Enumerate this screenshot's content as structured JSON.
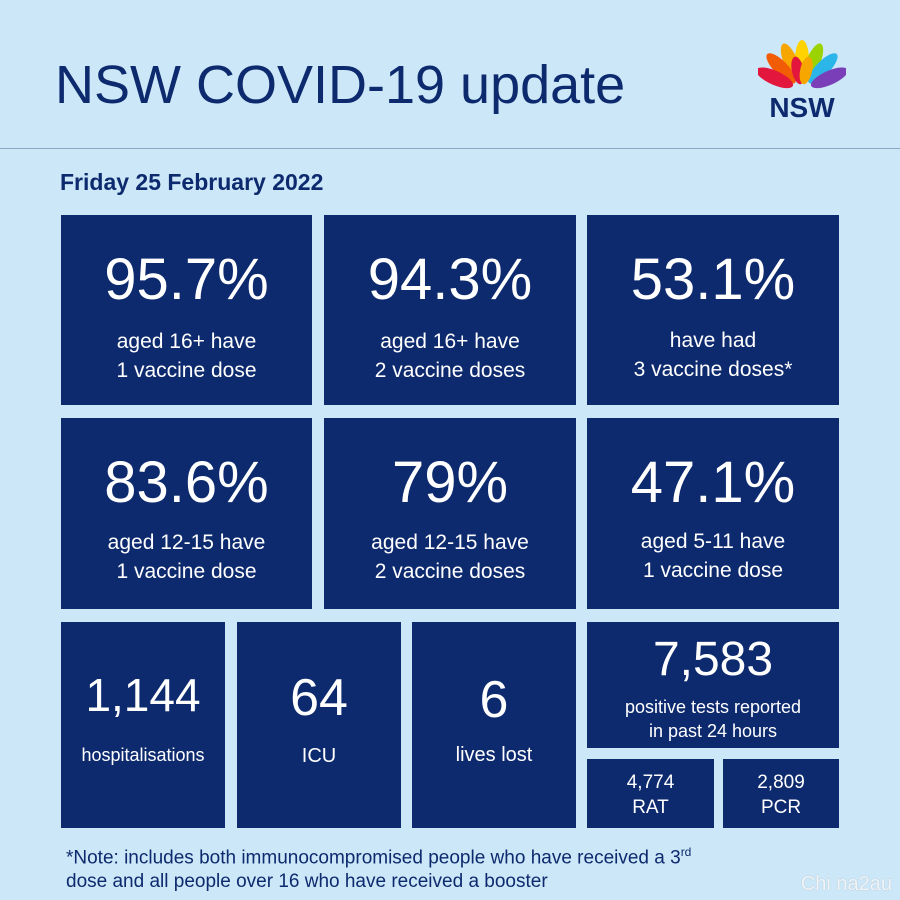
{
  "header": {
    "title": "NSW COVID-19 update",
    "logo_text": "NSW"
  },
  "date": "Friday 25 February 2022",
  "vaccines": [
    {
      "value": "95.7%",
      "line1": "aged 16+ have",
      "line2": "1 vaccine dose"
    },
    {
      "value": "94.3%",
      "line1": "aged 16+ have",
      "line2": "2 vaccine doses"
    },
    {
      "value": "53.1%",
      "line1": "have had",
      "line2": "3 vaccine doses*"
    },
    {
      "value": "83.6%",
      "line1": "aged 12-15 have",
      "line2": "1 vaccine dose"
    },
    {
      "value": "79%",
      "line1": "aged 12-15 have",
      "line2": "2 vaccine doses"
    },
    {
      "value": "47.1%",
      "line1": "aged 5-11 have",
      "line2": "1 vaccine dose"
    }
  ],
  "stats": {
    "hospitalisations": {
      "value": "1,144",
      "label": "hospitalisations"
    },
    "icu": {
      "value": "64",
      "label": "ICU"
    },
    "deaths": {
      "value": "6",
      "label": "lives lost"
    },
    "tests": {
      "value": "7,583",
      "line1": "positive tests reported",
      "line2": "in past 24 hours"
    },
    "rat": {
      "value": "4,774",
      "label": "RAT"
    },
    "pcr": {
      "value": "2,809",
      "label": "PCR"
    }
  },
  "note": {
    "part1": "*Note: includes both immunocompromised  people who have received a 3",
    "sup": "rd",
    "part2": "dose and all people over 16 who have received a booster"
  },
  "watermark": "Chi na2au",
  "colors": {
    "background": "#cce7f7",
    "tile": "#0d2a6e",
    "text": "#ffffff"
  }
}
